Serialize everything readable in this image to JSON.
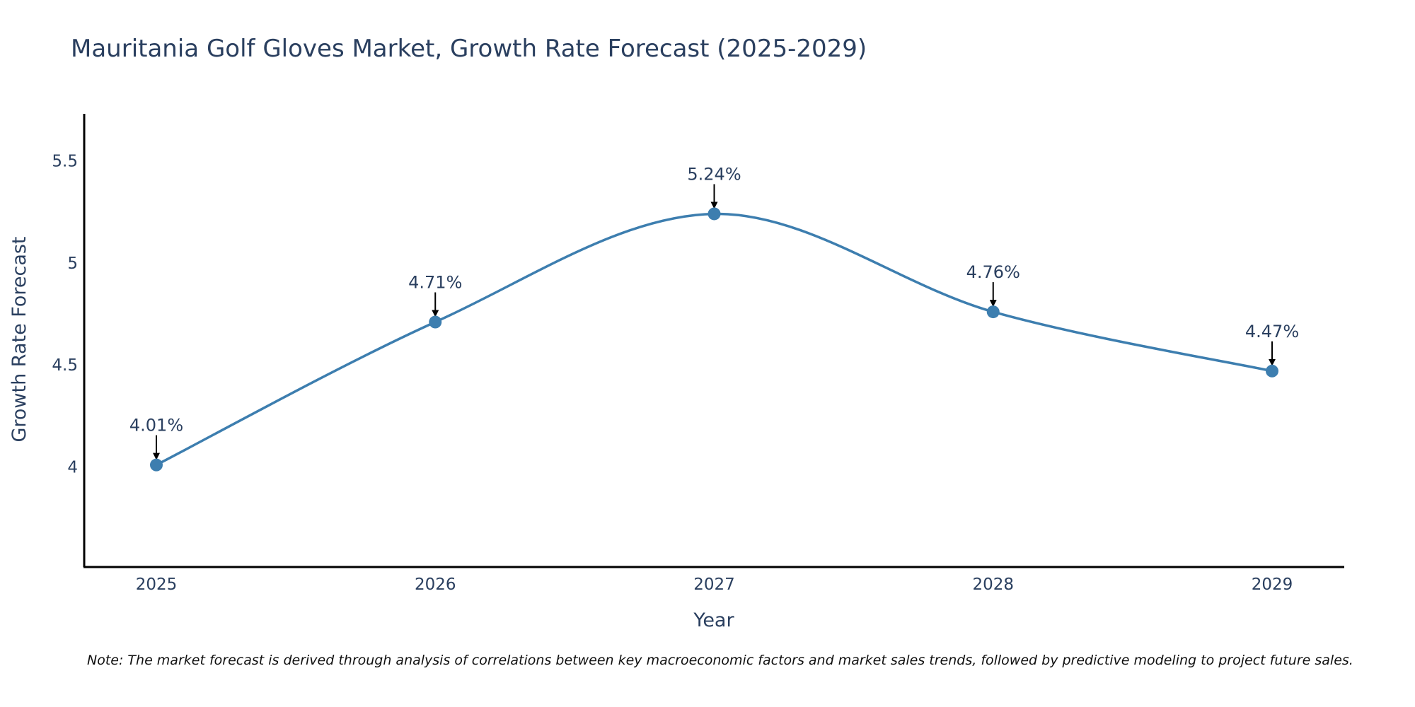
{
  "chart_data": {
    "type": "line",
    "title": "Mauritania Golf Gloves Market, Growth Rate Forecast (2025-2029)",
    "xlabel": "Year",
    "ylabel": "Growth Rate Forecast",
    "categories": [
      "2025",
      "2026",
      "2027",
      "2028",
      "2029"
    ],
    "series": [
      {
        "name": "Growth Rate Forecast",
        "values": [
          4.01,
          4.71,
          5.24,
          4.76,
          4.47
        ],
        "labels": [
          "4.01%",
          "4.71%",
          "5.24%",
          "4.76%",
          "4.47%"
        ],
        "color": "#3d7eaf",
        "line_shape": "spline"
      }
    ],
    "ylim": [
      3.51,
      5.73
    ],
    "yticks": [
      4,
      4.5,
      5,
      5.5
    ],
    "ytick_labels": [
      "4",
      "4.5",
      "5",
      "5.5"
    ],
    "grid": false,
    "legend": "none",
    "note": "Note: The market forecast is derived through analysis of correlations between key macroeconomic factors and market sales trends, followed by predictive modeling to project future sales."
  }
}
